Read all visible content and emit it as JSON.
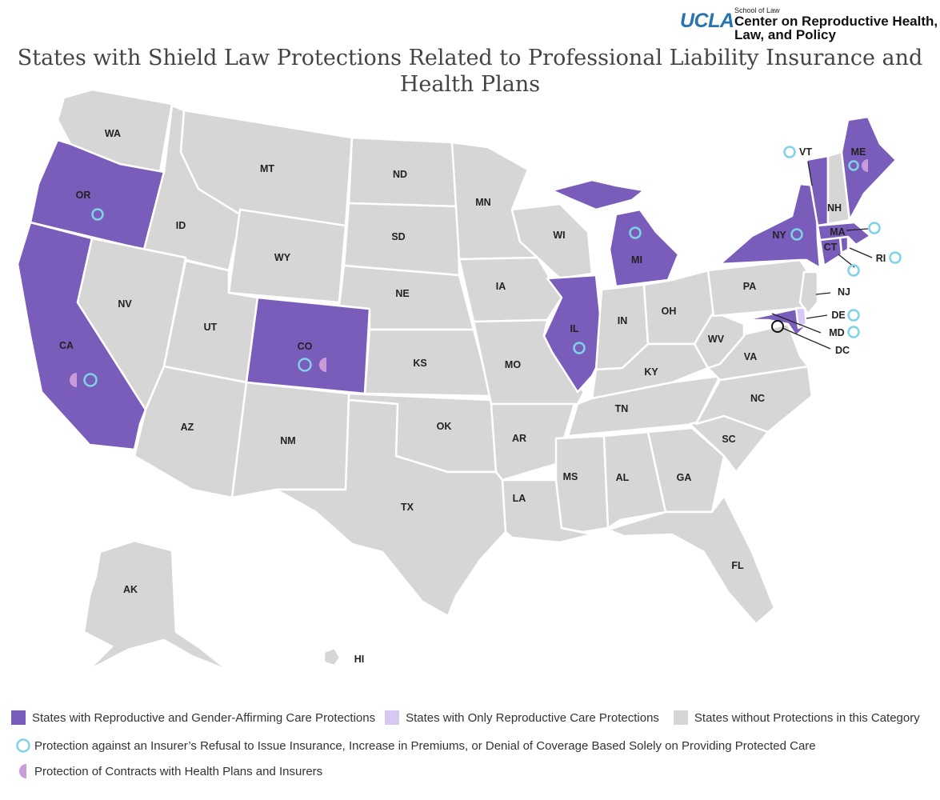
{
  "logo": {
    "ucla": "UCLA",
    "school": "School of Law",
    "center_line1": "Center on Reproductive Health,",
    "center_line2": "Law, and Policy"
  },
  "title": "States with Shield Law Protections Related to Professional Liability Insurance and Health Plans",
  "colors": {
    "repro_and_gender": "#7a5cba",
    "repro_only": "#d7c7f3",
    "no_protection": "#d6d6d6",
    "insurer_ring": "#7fd3e6",
    "contracts_half": "#c99bd9"
  },
  "states": {
    "WA": "WA",
    "OR": "OR",
    "CA": "CA",
    "ID": "ID",
    "NV": "NV",
    "MT": "MT",
    "WY": "WY",
    "UT": "UT",
    "AZ": "AZ",
    "CO": "CO",
    "NM": "NM",
    "ND": "ND",
    "SD": "SD",
    "NE": "NE",
    "KS": "KS",
    "OK": "OK",
    "TX": "TX",
    "MN": "MN",
    "IA": "IA",
    "MO": "MO",
    "AR": "AR",
    "LA": "LA",
    "WI": "WI",
    "IL": "IL",
    "MI": "MI",
    "IN": "IN",
    "OH": "OH",
    "KY": "KY",
    "TN": "TN",
    "MS": "MS",
    "AL": "AL",
    "GA": "GA",
    "FL": "FL",
    "SC": "SC",
    "NC": "NC",
    "VA": "VA",
    "WV": "WV",
    "PA": "PA",
    "NY": "NY",
    "NJ": "NJ",
    "DE": "DE",
    "MD": "MD",
    "DC": "DC",
    "CT": "CT",
    "RI": "RI",
    "MA": "MA",
    "VT": "VT",
    "NH": "NH",
    "ME": "ME",
    "AK": "AK",
    "HI": "HI"
  },
  "legend": {
    "repro_and_gender": "States with Reproductive and Gender-Affirming Care Protections",
    "repro_only": "States with Only Reproductive Care Protections",
    "no_protection": "States without Protections in this Category",
    "insurer_refusal": "Protection against an Insurer’s Refusal to Issue Insurance, Increase in Premiums, or Denial of Coverage Based Solely on Providing Protected Care",
    "contracts": "Protection of Contracts with Health Plans and Insurers"
  }
}
